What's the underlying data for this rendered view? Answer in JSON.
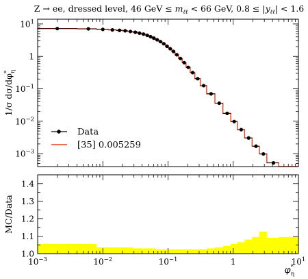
{
  "chart_data": [
    {
      "type": "line",
      "panel": "main",
      "title": "Z → ee, dressed level, 46 GeV ≤ m_ℓℓ < 66 GeV, 0.8 ≤ |y_ℓℓ| < 1.6",
      "title_parts": {
        "p1": "Z → ee, dressed level, 46 GeV ≤ ",
        "m": "m",
        "m_sub": "ℓℓ",
        "p2": " < 66 GeV, 0.8 ≤ |",
        "y": "y",
        "y_sub": "ℓℓ",
        "p3": "| < 1.6"
      },
      "ylabel": "1/σ dσ/dφ*η",
      "ylabel_parts": {
        "main": "1/σ dσ/dφ",
        "sup": "*",
        "sub": "η"
      },
      "xlabel": "φ*η",
      "xlabel_parts": {
        "main": "φ",
        "sup": "*",
        "sub": "η"
      },
      "x_scale": "log",
      "y_scale": "log",
      "xlim": [
        0.001,
        10
      ],
      "ylim": [
        0.0004,
        14
      ],
      "x_tick_labels": [
        {
          "base": "10",
          "exp": "−3",
          "value": 0.001
        },
        {
          "base": "10",
          "exp": "−2",
          "value": 0.01
        },
        {
          "base": "10",
          "exp": "−1",
          "value": 0.1
        },
        {
          "plain": "1",
          "value": 1
        },
        {
          "base": "10",
          "exp": "1",
          "value": 10
        }
      ],
      "y_tick_labels": [
        {
          "base": "10",
          "exp": "1",
          "value": 10
        },
        {
          "plain": "1",
          "value": 1
        },
        {
          "base": "10",
          "exp": "−1",
          "value": 0.1
        },
        {
          "base": "10",
          "exp": "−2",
          "value": 0.01
        },
        {
          "base": "10",
          "exp": "−3",
          "value": 0.001
        }
      ],
      "legend": {
        "position": "lower-left",
        "entries": [
          {
            "label": "Data",
            "color": "#000000"
          },
          {
            "label": "[35] 0.005259",
            "color": "#e8401c"
          }
        ]
      },
      "bin_edges": [
        0.001,
        0.004,
        0.008,
        0.012,
        0.016,
        0.02,
        0.024,
        0.029,
        0.034,
        0.039,
        0.045,
        0.051,
        0.057,
        0.064,
        0.072,
        0.081,
        0.091,
        0.102,
        0.114,
        0.128,
        0.145,
        0.165,
        0.189,
        0.219,
        0.258,
        0.312,
        0.391,
        0.524,
        0.695,
        0.918,
        1.153,
        1.496,
        1.947,
        2.522,
        3.277,
        5.0,
        10.0
      ],
      "series": [
        {
          "name": "Data",
          "marker": "circle",
          "color": "#000000",
          "x": [
            0.002,
            0.006,
            0.01,
            0.014,
            0.018,
            0.022,
            0.0265,
            0.0315,
            0.0365,
            0.042,
            0.048,
            0.054,
            0.0605,
            0.068,
            0.0765,
            0.086,
            0.0965,
            0.108,
            0.121,
            0.1365,
            0.155,
            0.177,
            0.204,
            0.2385,
            0.285,
            0.3515,
            0.4575,
            0.6095,
            0.8065,
            1.0355,
            1.3245,
            1.7215,
            2.2345,
            2.8995,
            4.1385,
            7.5
          ],
          "y": [
            7.2,
            7.05,
            6.8,
            6.55,
            6.35,
            6.15,
            5.85,
            5.55,
            5.2,
            4.85,
            4.45,
            4.05,
            3.65,
            3.25,
            2.85,
            2.45,
            2.05,
            1.72,
            1.42,
            1.12,
            0.86,
            0.64,
            0.46,
            0.315,
            0.205,
            0.125,
            0.07,
            0.036,
            0.0175,
            0.0098,
            0.0055,
            0.00305,
            0.0017,
            0.00098,
            0.00052,
            0.00018
          ]
        },
        {
          "name": "[35] 0.005259",
          "style": "step",
          "color": "#e8401c",
          "y": [
            7.2,
            7.05,
            6.8,
            6.55,
            6.35,
            6.15,
            5.85,
            5.55,
            5.2,
            4.85,
            4.45,
            4.05,
            3.65,
            3.25,
            2.85,
            2.45,
            2.05,
            1.72,
            1.42,
            1.12,
            0.86,
            0.64,
            0.46,
            0.315,
            0.205,
            0.125,
            0.07,
            0.036,
            0.0175,
            0.0098,
            0.0055,
            0.00305,
            0.0017,
            0.00098,
            0.00052,
            0.00018
          ]
        }
      ]
    },
    {
      "type": "area",
      "panel": "ratio",
      "ylabel": "MC/Data",
      "x_scale": "log",
      "xlim": [
        0.001,
        10
      ],
      "ylim": [
        1.0,
        1.45
      ],
      "y_tick_labels": [
        "1.0",
        "1.1",
        "1.2",
        "1.3",
        "1.4"
      ],
      "y_tick_values": [
        1.0,
        1.1,
        1.2,
        1.3,
        1.4
      ],
      "band_color": "#ffff00",
      "band_upper": [
        1.055,
        1.055,
        1.035,
        1.035,
        1.035,
        1.035,
        1.035,
        1.03,
        1.03,
        1.03,
        1.03,
        1.03,
        1.03,
        1.025,
        1.025,
        1.025,
        1.025,
        1.025,
        1.025,
        1.025,
        1.025,
        1.025,
        1.025,
        1.025,
        1.025,
        1.025,
        1.03,
        1.035,
        1.045,
        1.055,
        1.065,
        1.08,
        1.095,
        1.125,
        1.09,
        1.095
      ],
      "band_lower": [
        1.0,
        1.0,
        1.0,
        1.0,
        1.0,
        1.0,
        1.0,
        1.0,
        1.0,
        1.0,
        1.0,
        1.0,
        1.0,
        1.0,
        1.0,
        1.0,
        1.0,
        1.0,
        1.0,
        1.0,
        1.0,
        1.0,
        1.0,
        1.0,
        1.0,
        1.0,
        1.0,
        1.0,
        1.0,
        1.0,
        1.0,
        1.0,
        1.0,
        1.0,
        1.0,
        1.0
      ]
    }
  ]
}
